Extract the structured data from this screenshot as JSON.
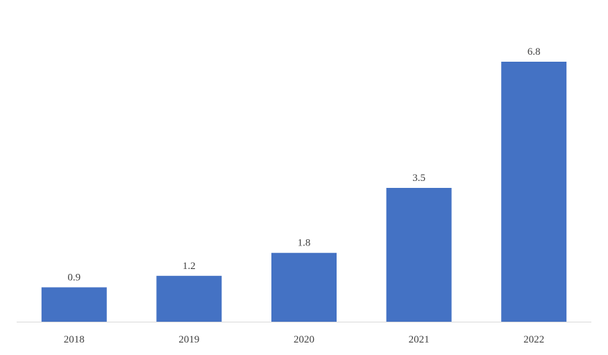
{
  "chart_data": {
    "type": "bar",
    "categories": [
      "2018",
      "2019",
      "2020",
      "2021",
      "2022"
    ],
    "values": [
      0.9,
      1.2,
      1.8,
      3.5,
      6.8
    ],
    "data_labels": [
      "0.9",
      "1.2",
      "1.8",
      "3.5",
      "6.8"
    ],
    "title": "",
    "xlabel": "",
    "ylabel": "",
    "ylim": [
      0,
      6.8
    ],
    "grid": false,
    "legend": "none",
    "bar_color": "#4472C4",
    "axis_color": "#D9D9D9",
    "label_color": "#404040"
  }
}
